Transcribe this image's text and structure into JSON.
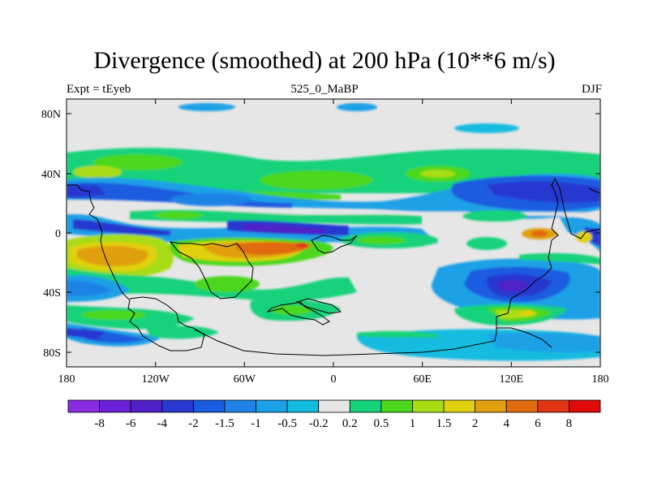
{
  "chart_data": {
    "type": "heatmap",
    "title": "Divergence (smoothed) at 200 hPa (10**6 m/s)",
    "left_label": "Expt = tEyeb",
    "center_label": "525_0_MaBP",
    "right_label": "DJF",
    "x_ticks": [
      "180",
      "120W",
      "60W",
      "0",
      "60E",
      "120E",
      "180"
    ],
    "y_ticks": [
      "80N",
      "40N",
      "0",
      "40S",
      "80S"
    ],
    "xlim": [
      -180,
      180
    ],
    "ylim": [
      -90,
      90
    ],
    "colorbar": {
      "labels": [
        "-8",
        "-6",
        "-4",
        "-2",
        "-1.5",
        "-1",
        "-0.5",
        "-0.2",
        "0.2",
        "0.5",
        "1",
        "1.5",
        "2",
        "4",
        "6",
        "8"
      ],
      "colors": [
        "#8a2be2",
        "#6a1fd8",
        "#5020c8",
        "#2838d0",
        "#1a5ce0",
        "#1f82e6",
        "#1aa0e6",
        "#12bce0",
        "#e6e6e6",
        "#16d27a",
        "#4cd71c",
        "#a8dc14",
        "#e0d010",
        "#e0a010",
        "#e06a0e",
        "#e03616",
        "#e00a0a"
      ]
    }
  }
}
